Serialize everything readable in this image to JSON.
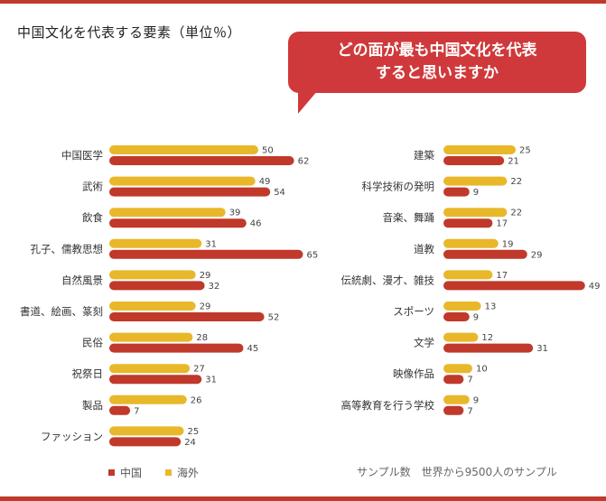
{
  "header": {
    "title": "中国文化を代表する要素（単位％）",
    "bubble_line1": "どの面が最も中国文化を代表",
    "bubble_line2": "すると思いますか"
  },
  "colors": {
    "china": "#c0392b",
    "overseas": "#e8b82a"
  },
  "legend": {
    "china": "中国",
    "overseas": "海外"
  },
  "footer": {
    "sample_note": "サンプル数　世界から9500人のサンプル"
  },
  "chart_data": [
    {
      "type": "bar",
      "orientation": "horizontal",
      "categories": [
        "中国医学",
        "武術",
        "飲食",
        "孔子、儒教思想",
        "自然風景",
        "書道、絵画、篆刻",
        "民俗",
        "祝祭日",
        "製品",
        "ファッション"
      ],
      "series": [
        {
          "name": "海外",
          "values": [
            50,
            49,
            39,
            31,
            29,
            29,
            28,
            27,
            26,
            25
          ]
        },
        {
          "name": "中国",
          "values": [
            62,
            54,
            46,
            65,
            32,
            52,
            45,
            31,
            7,
            24
          ]
        }
      ]
    },
    {
      "type": "bar",
      "orientation": "horizontal",
      "categories": [
        "建築",
        "科学技術の発明",
        "音楽、舞踊",
        "道教",
        "伝統劇、漫才、雑技",
        "スポーツ",
        "文学",
        "映像作品",
        "高等教育を行う学校"
      ],
      "series": [
        {
          "name": "海外",
          "values": [
            25,
            22,
            22,
            19,
            17,
            13,
            12,
            10,
            9
          ]
        },
        {
          "name": "中国",
          "values": [
            21,
            9,
            17,
            29,
            49,
            9,
            31,
            7,
            7
          ]
        }
      ]
    }
  ]
}
